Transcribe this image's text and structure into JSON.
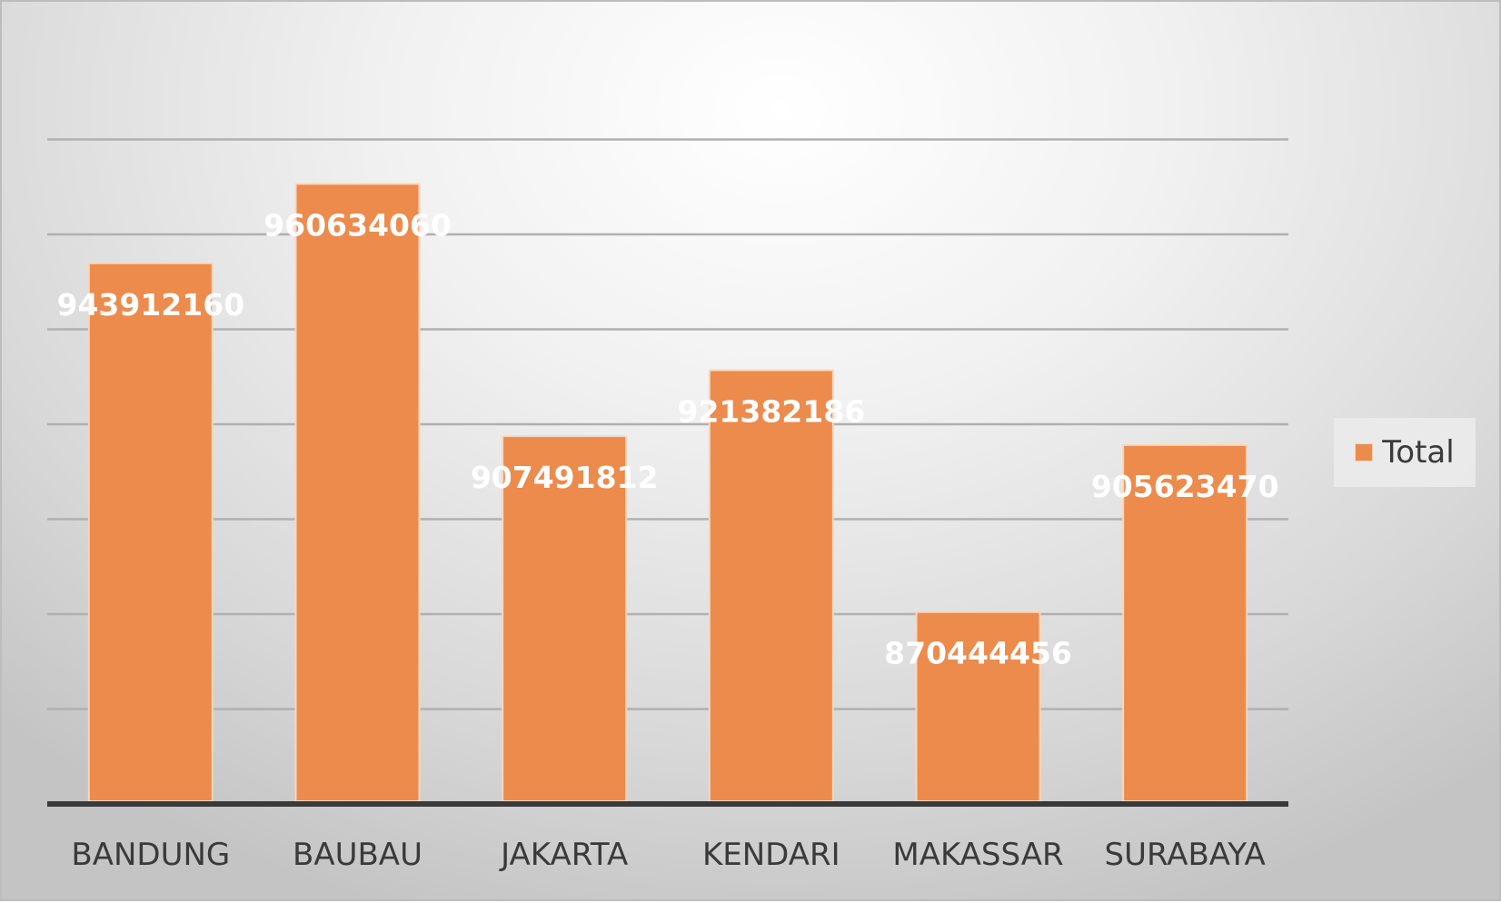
{
  "chart_data": {
    "type": "bar",
    "categories": [
      "BANDUNG",
      "BAUBAU",
      "JAKARTA",
      "KENDARI",
      "MAKASSAR",
      "SURABAYA"
    ],
    "series": [
      {
        "name": "Total",
        "values": [
          943912160,
          960634060,
          907491812,
          921382186,
          870444456,
          905623470
        ],
        "color": "#ec8b4c"
      }
    ],
    "data_labels": [
      "943912160",
      "960634060",
      "907491812",
      "921382186",
      "870444456",
      "905623470"
    ],
    "ylim": [
      830000000,
      970000000
    ],
    "y_gridline_step": 20000000,
    "grid": true,
    "y_axis_labels_shown": false,
    "legend_position": "right"
  },
  "legend": {
    "label": "Total",
    "color": "#ec8b4c"
  }
}
